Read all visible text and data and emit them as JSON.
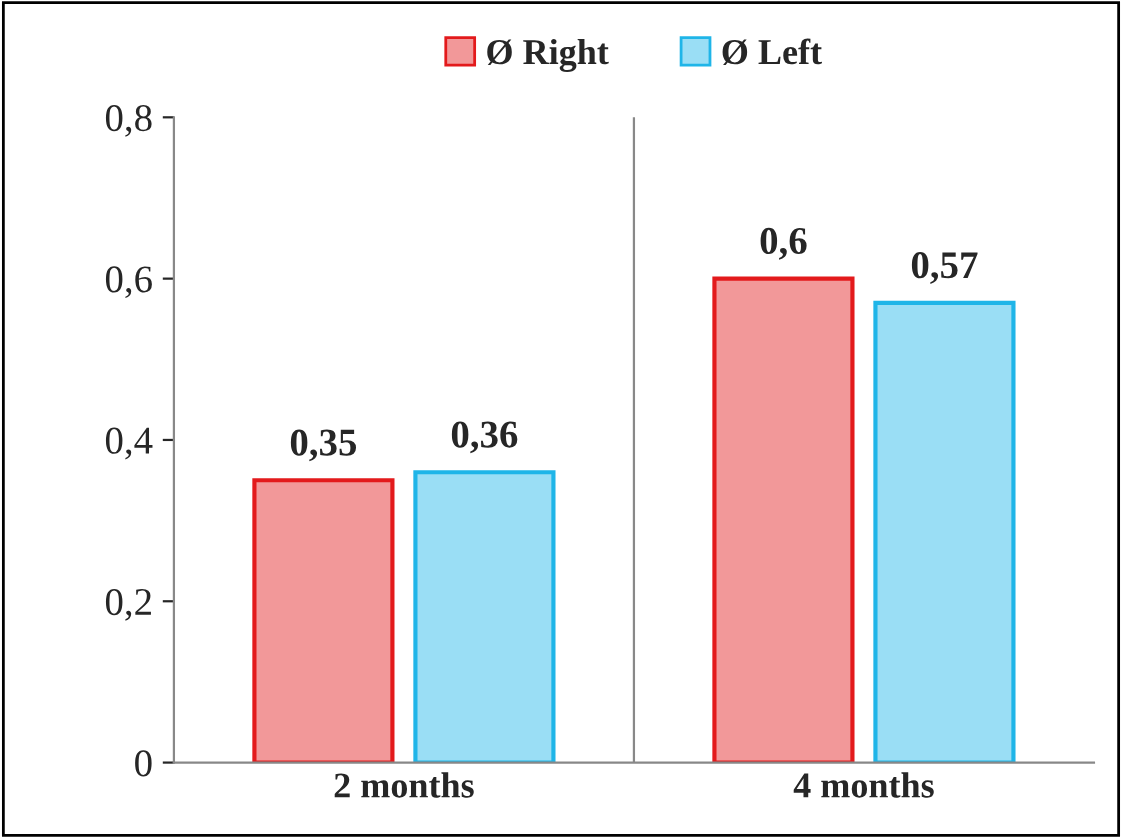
{
  "chart_data": {
    "type": "bar",
    "categories": [
      "2 months",
      "4 months"
    ],
    "series": [
      {
        "name": "Ø Right",
        "color": "#e31a1c",
        "values": [
          0.35,
          0.6
        ],
        "value_labels": [
          "0,35",
          "0,6"
        ]
      },
      {
        "name": "Ø Left",
        "color": "#1fb5e8",
        "values": [
          0.36,
          0.57
        ],
        "value_labels": [
          "0,36",
          "0,57"
        ]
      }
    ],
    "ylim": [
      0,
      0.8
    ],
    "yticks": [
      0,
      {
        "value": 0.2,
        "label": "0,2"
      },
      {
        "value": 0.4,
        "label": "0,4"
      },
      {
        "value": 0.6,
        "label": "0,6"
      },
      {
        "value": 0.8,
        "label": "0,8"
      }
    ],
    "grid": false,
    "legend": "top"
  }
}
